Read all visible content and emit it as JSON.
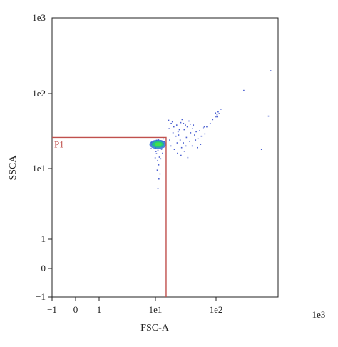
{
  "chart_data": {
    "type": "scatter",
    "title": "",
    "xlabel": "FSC-A",
    "ylabel": "SSCA",
    "x_scale": "biexponential",
    "y_scale": "biexponential",
    "xlim": [
      -1,
      1000
    ],
    "ylim": [
      -1,
      1000
    ],
    "x_ticks": [
      {
        "value": -1,
        "label": "−1"
      },
      {
        "value": 0,
        "label": "0"
      },
      {
        "value": 1,
        "label": "1"
      },
      {
        "value": 10,
        "label": "1e1"
      },
      {
        "value": 100,
        "label": "1e2"
      },
      {
        "value": 1000,
        "label": "1e3"
      }
    ],
    "y_ticks": [
      {
        "value": -1,
        "label": "−1"
      },
      {
        "value": 0,
        "label": "0"
      },
      {
        "value": 1,
        "label": "1"
      },
      {
        "value": 10,
        "label": "1e1"
      },
      {
        "value": 100,
        "label": "1e2"
      },
      {
        "value": 1000,
        "label": "1e3"
      }
    ],
    "gate": {
      "name": "P1",
      "x_max": 15,
      "y_max": 26,
      "color": "#c0504d"
    },
    "point_color": "#4a5fd0",
    "density_colors": [
      "#2f6fd8",
      "#22c08a",
      "#44e04c"
    ],
    "cluster": {
      "center": [
        11,
        21
      ],
      "note": "dense population"
    },
    "points": [
      [
        9.0,
        21.5
      ],
      [
        9.5,
        22.4
      ],
      [
        10.2,
        20.6
      ],
      [
        10.8,
        22.9
      ],
      [
        11.5,
        20.1
      ],
      [
        12.1,
        21.8
      ],
      [
        12.8,
        22.6
      ],
      [
        13.2,
        20.8
      ],
      [
        9.8,
        19.9
      ],
      [
        12.4,
        23.4
      ],
      [
        8.7,
        20.9
      ],
      [
        13.6,
        21.6
      ],
      [
        10.5,
        23.8
      ],
      [
        11.8,
        19.4
      ],
      [
        9.3,
        23.1
      ],
      [
        12.9,
        19.8
      ],
      [
        8.6,
        22.2
      ],
      [
        13.9,
        22.8
      ],
      [
        11.2,
        24.1
      ],
      [
        10.1,
        18.9
      ],
      [
        11.0,
        17.5
      ],
      [
        10.4,
        15.8
      ],
      [
        11.6,
        14.2
      ],
      [
        10.9,
        12.8
      ],
      [
        11.3,
        11.2
      ],
      [
        10.7,
        9.5
      ],
      [
        11.9,
        8.4
      ],
      [
        11.4,
        7.1
      ],
      [
        11.0,
        5.2
      ],
      [
        12.2,
        13.5
      ],
      [
        10.2,
        16.9
      ],
      [
        12.6,
        18.1
      ],
      [
        13.1,
        16.0
      ],
      [
        9.9,
        13.9
      ],
      [
        13.4,
        24.9
      ],
      [
        8.4,
        18.4
      ],
      [
        16.5,
        44
      ],
      [
        18.2,
        40
      ],
      [
        20.1,
        36
      ],
      [
        22.4,
        38
      ],
      [
        24.8,
        33
      ],
      [
        27.5,
        45
      ],
      [
        29.0,
        40
      ],
      [
        31.2,
        38
      ],
      [
        33.5,
        36
      ],
      [
        35.7,
        43
      ],
      [
        38.1,
        30
      ],
      [
        41.0,
        34
      ],
      [
        44.2,
        28
      ],
      [
        47.0,
        31
      ],
      [
        50.3,
        25
      ],
      [
        53.8,
        32
      ],
      [
        57.2,
        27
      ],
      [
        61.0,
        35
      ],
      [
        65.4,
        29
      ],
      [
        70.2,
        36
      ],
      [
        19.5,
        30
      ],
      [
        21.8,
        27
      ],
      [
        25.6,
        24
      ],
      [
        28.9,
        22
      ],
      [
        32.4,
        26
      ],
      [
        36.8,
        23
      ],
      [
        40.5,
        20
      ],
      [
        45.9,
        24
      ],
      [
        49.2,
        19
      ],
      [
        55.6,
        21
      ],
      [
        18.0,
        20
      ],
      [
        20.5,
        18
      ],
      [
        23.1,
        16
      ],
      [
        26.4,
        15
      ],
      [
        30.0,
        17
      ],
      [
        34.2,
        14
      ],
      [
        17.2,
        24
      ],
      [
        22.8,
        22
      ],
      [
        27.0,
        19
      ],
      [
        31.8,
        20
      ],
      [
        16.8,
        34
      ],
      [
        19.0,
        42
      ],
      [
        23.6,
        31
      ],
      [
        26.2,
        41
      ],
      [
        29.8,
        33
      ],
      [
        24.1,
        28
      ],
      [
        37.5,
        39
      ],
      [
        42.3,
        38
      ],
      [
        100,
        49
      ],
      [
        104,
        52
      ],
      [
        108,
        57
      ],
      [
        112,
        54
      ],
      [
        98,
        55
      ],
      [
        106,
        49
      ],
      [
        540,
        18
      ],
      [
        700,
        50
      ],
      [
        760,
        200
      ],
      [
        280,
        110
      ],
      [
        120,
        62
      ],
      [
        88,
        45
      ],
      [
        80,
        40
      ],
      [
        64,
        36
      ]
    ]
  }
}
